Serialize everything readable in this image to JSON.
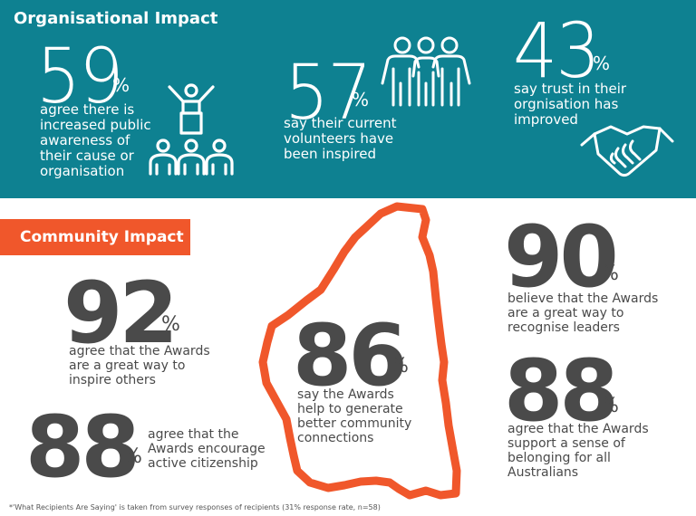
{
  "organisational": {
    "title": "Organisational Impact",
    "stats": [
      {
        "number": "59",
        "percent": "%",
        "text": "agree there is increased public awareness of their cause or organisation"
      },
      {
        "number": "57",
        "percent": "%",
        "text": "say their current volunteers have been inspired"
      },
      {
        "number": "43",
        "percent": "%",
        "text": "say trust in their orgnisation has improved"
      }
    ],
    "icons": [
      "audience-leader-icon",
      "volunteers-group-icon",
      "handshake-icon"
    ]
  },
  "community": {
    "title": "Community Impact",
    "stats": [
      {
        "number": "92",
        "percent": "%",
        "text": "agree that the Awards are a great way to inspire others"
      },
      {
        "number": "88",
        "percent": "%",
        "text": "agree that the Awards encourage active citizenship"
      },
      {
        "number": "86",
        "percent": "%",
        "text": "say the Awards help to generate better community connections"
      },
      {
        "number": "90",
        "percent": "%",
        "text": "believe that the Awards are a great way to recognise leaders"
      },
      {
        "number": "88",
        "percent": "%",
        "text": "agree that the Awards support a sense of belonging for all Australians"
      }
    ],
    "map_icon": "western-australia-map-outline"
  },
  "footnote": "*'What Recipients Are Saying' is taken from survey responses of recipients (31% response rate, n=58)",
  "colors": {
    "teal": "#0e8191",
    "orange": "#f0572b",
    "dark_text": "#4a4a4a"
  }
}
